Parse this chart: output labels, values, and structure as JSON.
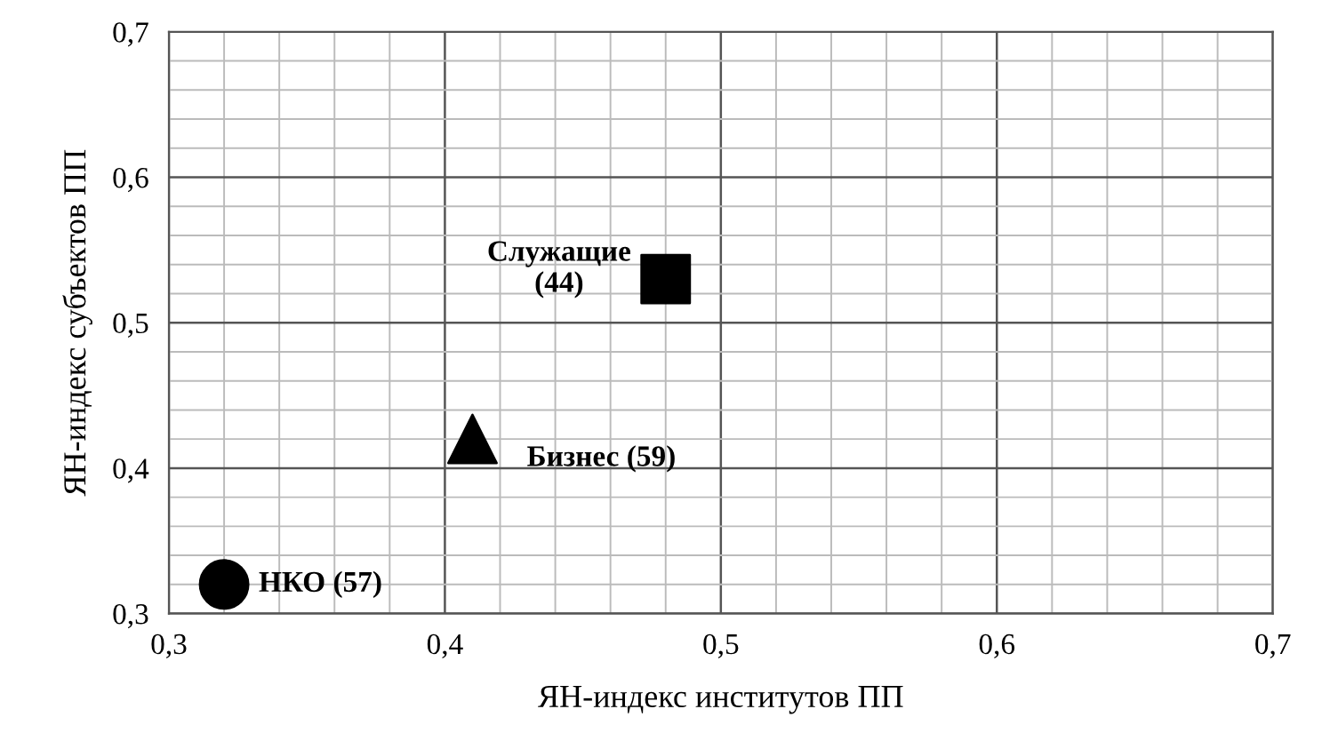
{
  "chart_data": {
    "type": "scatter",
    "xlabel": "ЯН-индекс институтов ПП",
    "ylabel": "ЯН-индекс субъектов ПП",
    "xlim": [
      0.3,
      0.7
    ],
    "ylim": [
      0.3,
      0.7
    ],
    "xticks": [
      {
        "value": 0.3,
        "label": "0,3"
      },
      {
        "value": 0.32,
        "label": null
      },
      {
        "value": 0.34,
        "label": null
      },
      {
        "value": 0.36,
        "label": null
      },
      {
        "value": 0.38,
        "label": null
      },
      {
        "value": 0.4,
        "label": "0,4"
      },
      {
        "value": 0.42,
        "label": null
      },
      {
        "value": 0.44,
        "label": null
      },
      {
        "value": 0.46,
        "label": null
      },
      {
        "value": 0.48,
        "label": null
      },
      {
        "value": 0.5,
        "label": "0,5"
      },
      {
        "value": 0.52,
        "label": null
      },
      {
        "value": 0.54,
        "label": null
      },
      {
        "value": 0.56,
        "label": null
      },
      {
        "value": 0.58,
        "label": null
      },
      {
        "value": 0.6,
        "label": "0,6"
      },
      {
        "value": 0.62,
        "label": null
      },
      {
        "value": 0.64,
        "label": null
      },
      {
        "value": 0.66,
        "label": null
      },
      {
        "value": 0.68,
        "label": null
      },
      {
        "value": 0.7,
        "label": "0,7"
      }
    ],
    "yticks": [
      {
        "value": 0.3,
        "label": "0,3"
      },
      {
        "value": 0.32,
        "label": null
      },
      {
        "value": 0.34,
        "label": null
      },
      {
        "value": 0.36,
        "label": null
      },
      {
        "value": 0.38,
        "label": null
      },
      {
        "value": 0.4,
        "label": "0,4"
      },
      {
        "value": 0.42,
        "label": null
      },
      {
        "value": 0.44,
        "label": null
      },
      {
        "value": 0.46,
        "label": null
      },
      {
        "value": 0.48,
        "label": null
      },
      {
        "value": 0.5,
        "label": "0,5"
      },
      {
        "value": 0.52,
        "label": null
      },
      {
        "value": 0.54,
        "label": null
      },
      {
        "value": 0.56,
        "label": null
      },
      {
        "value": 0.58,
        "label": null
      },
      {
        "value": 0.6,
        "label": "0,6"
      },
      {
        "value": 0.62,
        "label": null
      },
      {
        "value": 0.64,
        "label": null
      },
      {
        "value": 0.66,
        "label": null
      },
      {
        "value": 0.68,
        "label": null
      },
      {
        "value": 0.7,
        "label": "0,7"
      }
    ],
    "grid": true,
    "legend": false,
    "series": [
      {
        "name": "НКО (57)",
        "color": "#000000",
        "marker": "circle",
        "x": [
          0.32
        ],
        "values": [
          0.32
        ]
      },
      {
        "name": "Бизнес (59)",
        "color": "#000000",
        "marker": "triangle",
        "x": [
          0.41
        ],
        "values": [
          0.42
        ]
      },
      {
        "name": "Служащие\n(44)",
        "color": "#000000",
        "marker": "square",
        "x": [
          0.48
        ],
        "values": [
          0.53
        ]
      }
    ]
  }
}
